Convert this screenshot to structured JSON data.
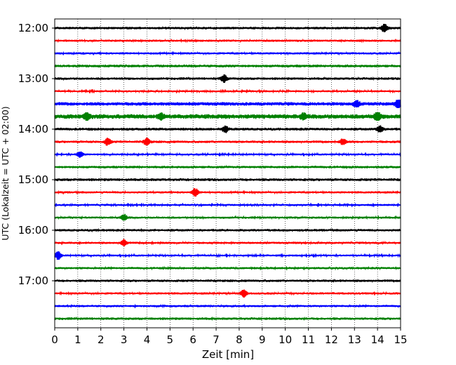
{
  "chart_data": {
    "type": "line",
    "title": "",
    "xlabel": "Zeit  [min]",
    "ylabel": "UTC (Lokalzeit = UTC + 02:00)",
    "xlim": [
      0,
      15
    ],
    "x_ticks": [
      0,
      1,
      2,
      3,
      4,
      5,
      6,
      7,
      8,
      9,
      10,
      11,
      12,
      13,
      14,
      15
    ],
    "y_tick_labels": [
      "12:00",
      "13:00",
      "14:00",
      "15:00",
      "16:00",
      "17:00"
    ],
    "y_tick_traces": [
      0,
      4,
      8,
      12,
      16,
      20
    ],
    "grid": "vertical-dotted",
    "trace_colors": [
      "#000000",
      "#ff0000",
      "#0000ff",
      "#008000"
    ],
    "traces_start": [
      "12:00",
      "12:15",
      "12:30",
      "12:45",
      "13:00",
      "13:15",
      "13:30",
      "13:45",
      "14:00",
      "14:15",
      "14:30",
      "14:45",
      "15:00",
      "15:15",
      "15:30",
      "15:45",
      "16:00",
      "16:15",
      "16:30",
      "16:45",
      "17:00",
      "17:15",
      "17:30",
      "17:45"
    ],
    "noise_level": [
      0.5,
      0.45,
      0.45,
      0.55,
      0.5,
      0.4,
      0.7,
      0.9,
      0.55,
      0.5,
      0.4,
      0.5,
      0.55,
      0.45,
      0.4,
      0.45,
      0.5,
      0.45,
      0.4,
      0.45,
      0.5,
      0.45,
      0.45,
      0.5
    ],
    "events": [
      {
        "trace": 0,
        "x": 14.3,
        "amp": 2.2
      },
      {
        "trace": 4,
        "x": 7.35,
        "amp": 2.0
      },
      {
        "trace": 6,
        "x": 13.1,
        "amp": 1.5
      },
      {
        "trace": 6,
        "x": 14.9,
        "amp": 2.5
      },
      {
        "trace": 7,
        "x": 1.4,
        "amp": 2.0
      },
      {
        "trace": 7,
        "x": 4.6,
        "amp": 1.6
      },
      {
        "trace": 7,
        "x": 10.8,
        "amp": 1.6
      },
      {
        "trace": 7,
        "x": 14.0,
        "amp": 2.4
      },
      {
        "trace": 8,
        "x": 7.4,
        "amp": 1.5
      },
      {
        "trace": 8,
        "x": 14.1,
        "amp": 1.6
      },
      {
        "trace": 9,
        "x": 2.3,
        "amp": 1.8
      },
      {
        "trace": 9,
        "x": 4.0,
        "amp": 1.8
      },
      {
        "trace": 9,
        "x": 12.5,
        "amp": 1.5
      },
      {
        "trace": 10,
        "x": 1.1,
        "amp": 1.5
      },
      {
        "trace": 13,
        "x": 6.1,
        "amp": 2.0
      },
      {
        "trace": 15,
        "x": 3.0,
        "amp": 1.6
      },
      {
        "trace": 17,
        "x": 3.0,
        "amp": 1.5
      },
      {
        "trace": 18,
        "x": 0.15,
        "amp": 2.2
      },
      {
        "trace": 21,
        "x": 8.2,
        "amp": 1.8
      }
    ]
  }
}
